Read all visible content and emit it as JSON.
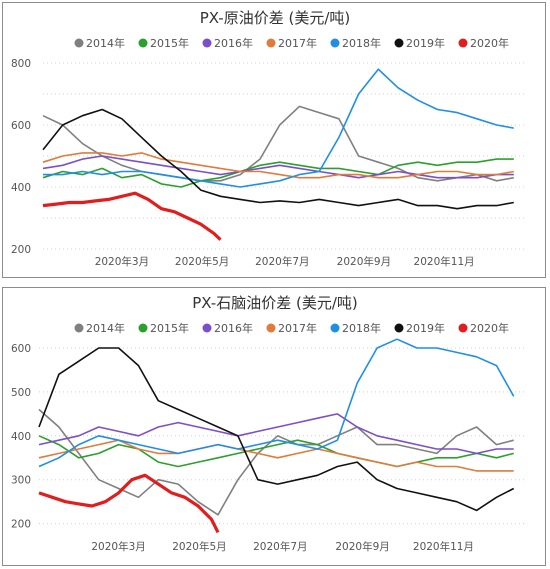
{
  "chart_data": [
    {
      "type": "line",
      "title": "PX-原油价差 (美元/吨)",
      "xlabel": "",
      "ylabel": "",
      "ylim": [
        200,
        800
      ],
      "yticks": [
        200,
        300,
        400,
        500,
        600,
        700,
        800
      ],
      "ytick_labels": [
        "200",
        "",
        "400",
        "",
        "600",
        "",
        "800"
      ],
      "xlim": [
        0,
        365
      ],
      "xticks": [
        {
          "label": "2020年3月",
          "day": 60
        },
        {
          "label": "2020年5月",
          "day": 121
        },
        {
          "label": "2020年7月",
          "day": 182
        },
        {
          "label": "2020年9月",
          "day": 244
        },
        {
          "label": "2020年11月",
          "day": 305
        }
      ],
      "grid": "horizontal dotted",
      "legend_position": "top",
      "x_unit": "day of year",
      "series": [
        {
          "name": "2014年",
          "color": "#808080",
          "x": [
            0,
            15,
            30,
            45,
            60,
            75,
            90,
            105,
            120,
            135,
            150,
            165,
            180,
            195,
            210,
            225,
            240,
            255,
            270,
            285,
            300,
            315,
            330,
            345,
            358
          ],
          "y": [
            630,
            600,
            540,
            500,
            470,
            450,
            440,
            430,
            420,
            420,
            440,
            490,
            600,
            660,
            640,
            620,
            500,
            480,
            460,
            430,
            420,
            430,
            440,
            420,
            430
          ]
        },
        {
          "name": "2015年",
          "color": "#2ca02c",
          "x": [
            0,
            15,
            30,
            45,
            60,
            75,
            90,
            105,
            120,
            135,
            150,
            165,
            180,
            195,
            210,
            225,
            240,
            255,
            270,
            285,
            300,
            315,
            330,
            345,
            358
          ],
          "y": [
            430,
            450,
            440,
            460,
            430,
            440,
            410,
            400,
            420,
            430,
            450,
            470,
            480,
            470,
            460,
            460,
            450,
            440,
            470,
            480,
            470,
            480,
            480,
            490,
            490
          ]
        },
        {
          "name": "2016年",
          "color": "#7b4fc9",
          "x": [
            0,
            15,
            30,
            45,
            60,
            75,
            90,
            105,
            120,
            135,
            150,
            165,
            180,
            195,
            210,
            225,
            240,
            255,
            270,
            285,
            300,
            315,
            330,
            345,
            358
          ],
          "y": [
            460,
            470,
            490,
            500,
            490,
            480,
            470,
            460,
            450,
            440,
            450,
            460,
            470,
            460,
            450,
            440,
            430,
            440,
            450,
            440,
            430,
            430,
            430,
            440,
            440
          ]
        },
        {
          "name": "2017年",
          "color": "#e07b39",
          "x": [
            0,
            15,
            30,
            45,
            60,
            75,
            90,
            105,
            120,
            135,
            150,
            165,
            180,
            195,
            210,
            225,
            240,
            255,
            270,
            285,
            300,
            315,
            330,
            345,
            358
          ],
          "y": [
            480,
            500,
            510,
            510,
            500,
            510,
            490,
            480,
            470,
            460,
            450,
            450,
            440,
            430,
            430,
            440,
            440,
            430,
            430,
            440,
            450,
            450,
            440,
            440,
            450
          ]
        },
        {
          "name": "2018年",
          "color": "#1f8fe6",
          "x": [
            0,
            15,
            30,
            45,
            60,
            75,
            90,
            105,
            120,
            135,
            150,
            165,
            180,
            195,
            210,
            225,
            240,
            255,
            270,
            285,
            300,
            315,
            330,
            345,
            358
          ],
          "y": [
            440,
            440,
            450,
            440,
            450,
            450,
            440,
            430,
            420,
            410,
            400,
            410,
            420,
            440,
            450,
            560,
            700,
            780,
            720,
            680,
            650,
            640,
            620,
            600,
            590
          ]
        },
        {
          "name": "2019年",
          "color": "#111111",
          "x": [
            0,
            15,
            30,
            45,
            60,
            75,
            90,
            105,
            120,
            135,
            150,
            165,
            180,
            195,
            210,
            225,
            240,
            255,
            270,
            285,
            300,
            315,
            330,
            345,
            358
          ],
          "y": [
            520,
            600,
            630,
            650,
            620,
            560,
            500,
            450,
            390,
            370,
            360,
            350,
            355,
            350,
            360,
            350,
            340,
            350,
            360,
            340,
            340,
            330,
            340,
            340,
            350
          ]
        },
        {
          "name": "2020年",
          "color": "#e11d1d",
          "x": [
            0,
            10,
            20,
            30,
            40,
            50,
            60,
            70,
            80,
            90,
            100,
            110,
            120,
            130,
            135
          ],
          "y": [
            340,
            345,
            350,
            350,
            355,
            360,
            370,
            380,
            360,
            330,
            320,
            300,
            280,
            250,
            230
          ]
        }
      ]
    },
    {
      "type": "line",
      "title": "PX-石脑油价差 (美元/吨)",
      "xlabel": "",
      "ylabel": "",
      "ylim": [
        190,
        600
      ],
      "yticks": [
        200,
        300,
        400,
        500,
        600
      ],
      "ytick_labels": [
        "200",
        "300",
        "400",
        "500",
        "600"
      ],
      "xlim": [
        0,
        365
      ],
      "xticks": [
        {
          "label": "2020年3月",
          "day": 60
        },
        {
          "label": "2020年5月",
          "day": 121
        },
        {
          "label": "2020年7月",
          "day": 182
        },
        {
          "label": "2020年9月",
          "day": 244
        },
        {
          "label": "2020年11月",
          "day": 305
        }
      ],
      "grid": "horizontal dotted",
      "legend_position": "top",
      "x_unit": "day of year",
      "series": [
        {
          "name": "2014年",
          "color": "#808080",
          "x": [
            0,
            15,
            30,
            45,
            60,
            75,
            90,
            105,
            120,
            135,
            150,
            165,
            180,
            195,
            210,
            225,
            240,
            255,
            270,
            285,
            300,
            315,
            330,
            345,
            358
          ],
          "y": [
            460,
            420,
            360,
            300,
            280,
            260,
            300,
            290,
            250,
            220,
            300,
            360,
            400,
            380,
            380,
            400,
            420,
            380,
            380,
            370,
            360,
            400,
            420,
            380,
            390
          ]
        },
        {
          "name": "2015年",
          "color": "#2ca02c",
          "x": [
            0,
            15,
            30,
            45,
            60,
            75,
            90,
            105,
            120,
            135,
            150,
            165,
            180,
            195,
            210,
            225,
            240,
            255,
            270,
            285,
            300,
            315,
            330,
            345,
            358
          ],
          "y": [
            400,
            380,
            350,
            360,
            380,
            370,
            340,
            330,
            340,
            350,
            360,
            370,
            380,
            390,
            380,
            360,
            350,
            340,
            330,
            340,
            350,
            350,
            360,
            350,
            360
          ]
        },
        {
          "name": "2016年",
          "color": "#7b4fc9",
          "x": [
            0,
            15,
            30,
            45,
            60,
            75,
            90,
            105,
            120,
            135,
            150,
            165,
            180,
            195,
            210,
            225,
            240,
            255,
            270,
            285,
            300,
            315,
            330,
            345,
            358
          ],
          "y": [
            380,
            390,
            400,
            420,
            410,
            400,
            420,
            430,
            420,
            410,
            400,
            410,
            420,
            430,
            440,
            450,
            420,
            400,
            390,
            380,
            370,
            370,
            360,
            370,
            370
          ]
        },
        {
          "name": "2017年",
          "color": "#e07b39",
          "x": [
            0,
            15,
            30,
            45,
            60,
            75,
            90,
            105,
            120,
            135,
            150,
            165,
            180,
            195,
            210,
            225,
            240,
            255,
            270,
            285,
            300,
            315,
            330,
            345,
            358
          ],
          "y": [
            350,
            360,
            370,
            380,
            390,
            370,
            360,
            360,
            370,
            380,
            370,
            360,
            350,
            360,
            370,
            360,
            350,
            340,
            330,
            340,
            330,
            330,
            320,
            320,
            320
          ]
        },
        {
          "name": "2018年",
          "color": "#1f8fe6",
          "x": [
            0,
            15,
            30,
            45,
            60,
            75,
            90,
            105,
            120,
            135,
            150,
            165,
            180,
            195,
            210,
            225,
            240,
            255,
            270,
            285,
            300,
            315,
            330,
            345,
            358
          ],
          "y": [
            330,
            350,
            380,
            400,
            390,
            380,
            370,
            360,
            370,
            380,
            370,
            380,
            390,
            380,
            370,
            390,
            520,
            600,
            620,
            600,
            600,
            590,
            580,
            560,
            490
          ]
        },
        {
          "name": "2019年",
          "color": "#111111",
          "x": [
            0,
            15,
            30,
            45,
            60,
            75,
            90,
            105,
            120,
            135,
            150,
            165,
            180,
            195,
            210,
            225,
            240,
            255,
            270,
            285,
            300,
            315,
            330,
            345,
            358
          ],
          "y": [
            420,
            540,
            570,
            600,
            600,
            560,
            480,
            460,
            440,
            420,
            400,
            300,
            290,
            300,
            310,
            330,
            340,
            300,
            280,
            270,
            260,
            250,
            230,
            260,
            280
          ]
        },
        {
          "name": "2020年",
          "color": "#e11d1d",
          "x": [
            0,
            10,
            20,
            30,
            40,
            50,
            60,
            70,
            80,
            90,
            100,
            110,
            120,
            130,
            135
          ],
          "y": [
            270,
            260,
            250,
            245,
            240,
            250,
            270,
            300,
            310,
            290,
            270,
            260,
            240,
            210,
            180
          ]
        }
      ]
    }
  ]
}
